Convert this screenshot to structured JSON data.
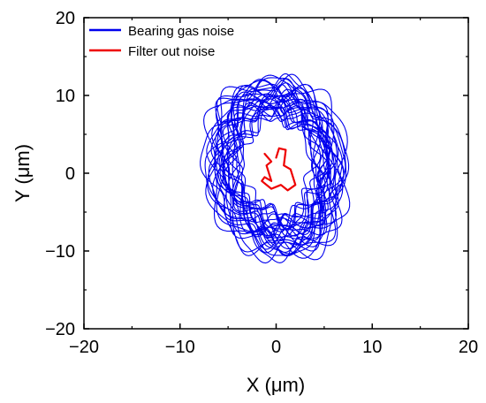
{
  "chart_data": {
    "type": "line",
    "title": "",
    "xlabel": "X (μm)",
    "ylabel": "Y (μm)",
    "xlim": [
      -20,
      20
    ],
    "ylim": [
      -20,
      20
    ],
    "xticks": [
      -20,
      -10,
      0,
      10,
      20
    ],
    "yticks": [
      -20,
      -10,
      0,
      10,
      20
    ],
    "xtick_labels": [
      "−20",
      "−10",
      "0",
      "10",
      "20"
    ],
    "ytick_labels": [
      "−20",
      "−10",
      "0",
      "10",
      "20"
    ],
    "grid": false,
    "legend_position": "top-left",
    "series": [
      {
        "name": "Bearing gas noise",
        "color": "#0000ee",
        "style": "dense-loops",
        "x": [
          2.0,
          4.5,
          6.5,
          7.8,
          7.5,
          6.5,
          4.5,
          1.5,
          -1.0,
          -3.5,
          -6.0,
          -7.5,
          -7.8,
          -7.0,
          -5.5,
          -3.0,
          0.0,
          2.0
        ],
        "y": [
          12.5,
          11.0,
          7.5,
          1.5,
          -4.0,
          -8.0,
          -11.0,
          -12.0,
          -11.5,
          -10.0,
          -7.0,
          -2.0,
          3.0,
          7.5,
          10.5,
          12.5,
          13.0,
          12.5
        ]
      },
      {
        "name": "Filter out noise",
        "color": "#ee0000",
        "style": "line",
        "x": [
          0.0,
          0.3,
          1.0,
          0.8,
          1.5,
          2.0,
          1.2,
          0.5,
          -0.5,
          -1.5,
          -1.2,
          -0.5,
          -1.0,
          -0.5,
          -1.2
        ],
        "y": [
          2.0,
          3.2,
          3.0,
          1.0,
          0.5,
          -1.5,
          -2.2,
          -1.5,
          -2.0,
          -1.0,
          -0.5,
          -1.0,
          1.0,
          1.5,
          2.5
        ]
      }
    ]
  }
}
